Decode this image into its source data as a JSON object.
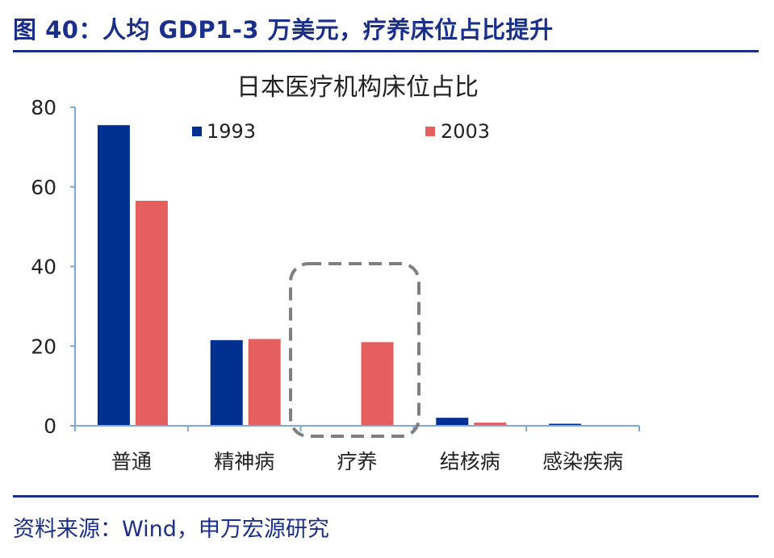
{
  "figure": {
    "title": "图 40：人均 GDP1-3 万美元，疗养床位占比提升",
    "source": "资料来源：Wind，申万宏源研究"
  },
  "colors": {
    "accent": "#1a2f8a",
    "series_1993": "#00308f",
    "series_2003": "#e65f5f",
    "axis": "#7da7d9",
    "highlight_box": "#7f7f7f"
  },
  "chart_data": {
    "type": "bar",
    "title": "日本医疗机构床位占比",
    "categories": [
      "普通",
      "精神病",
      "疗养",
      "结核病",
      "感染疾病"
    ],
    "series": [
      {
        "name": "1993",
        "values": [
          75.5,
          21.5,
          0,
          2.0,
          0.5
        ]
      },
      {
        "name": "2003",
        "values": [
          56.5,
          21.8,
          21.0,
          0.8,
          0
        ]
      }
    ],
    "xlabel": "",
    "ylabel": "",
    "ylim": [
      0,
      80
    ],
    "yticks": [
      "0",
      "20",
      "40",
      "60",
      "80"
    ],
    "grid": false,
    "legend_position": "top",
    "highlight_category": "疗养"
  }
}
